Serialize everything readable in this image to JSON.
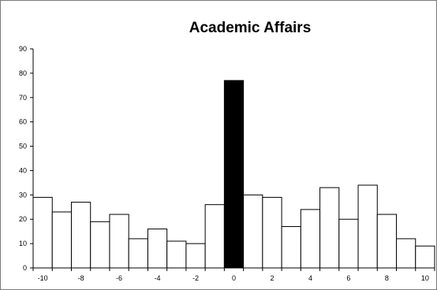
{
  "chart_data": {
    "type": "bar",
    "title": "Academic Affairs",
    "xlabel": "",
    "ylabel": "",
    "x_ticks": [
      "-10",
      "-8",
      "-6",
      "-4",
      "-2",
      "0",
      "2",
      "4",
      "6",
      "8",
      "10"
    ],
    "y_ticks": [
      "0",
      "10",
      "20",
      "30",
      "40",
      "50",
      "60",
      "70",
      "80",
      "90"
    ],
    "ylim": [
      0,
      90
    ],
    "xlim": [
      -10.5,
      10.5
    ],
    "grid": false,
    "legend": "none",
    "highlight_x": 0,
    "highlight_color": "#000000",
    "bar_color": "#ffffff",
    "bar_outline_color": "#000000",
    "x": [
      -10,
      -9,
      -8,
      -7,
      -6,
      -5,
      -4,
      -3,
      -2,
      -1,
      0,
      1,
      2,
      3,
      4,
      5,
      6,
      7,
      8,
      9,
      10
    ],
    "values": [
      29,
      23,
      27,
      19,
      22,
      12,
      16,
      11,
      10,
      26,
      77,
      30,
      29,
      17,
      24,
      33,
      20,
      34,
      22,
      12,
      9
    ]
  }
}
